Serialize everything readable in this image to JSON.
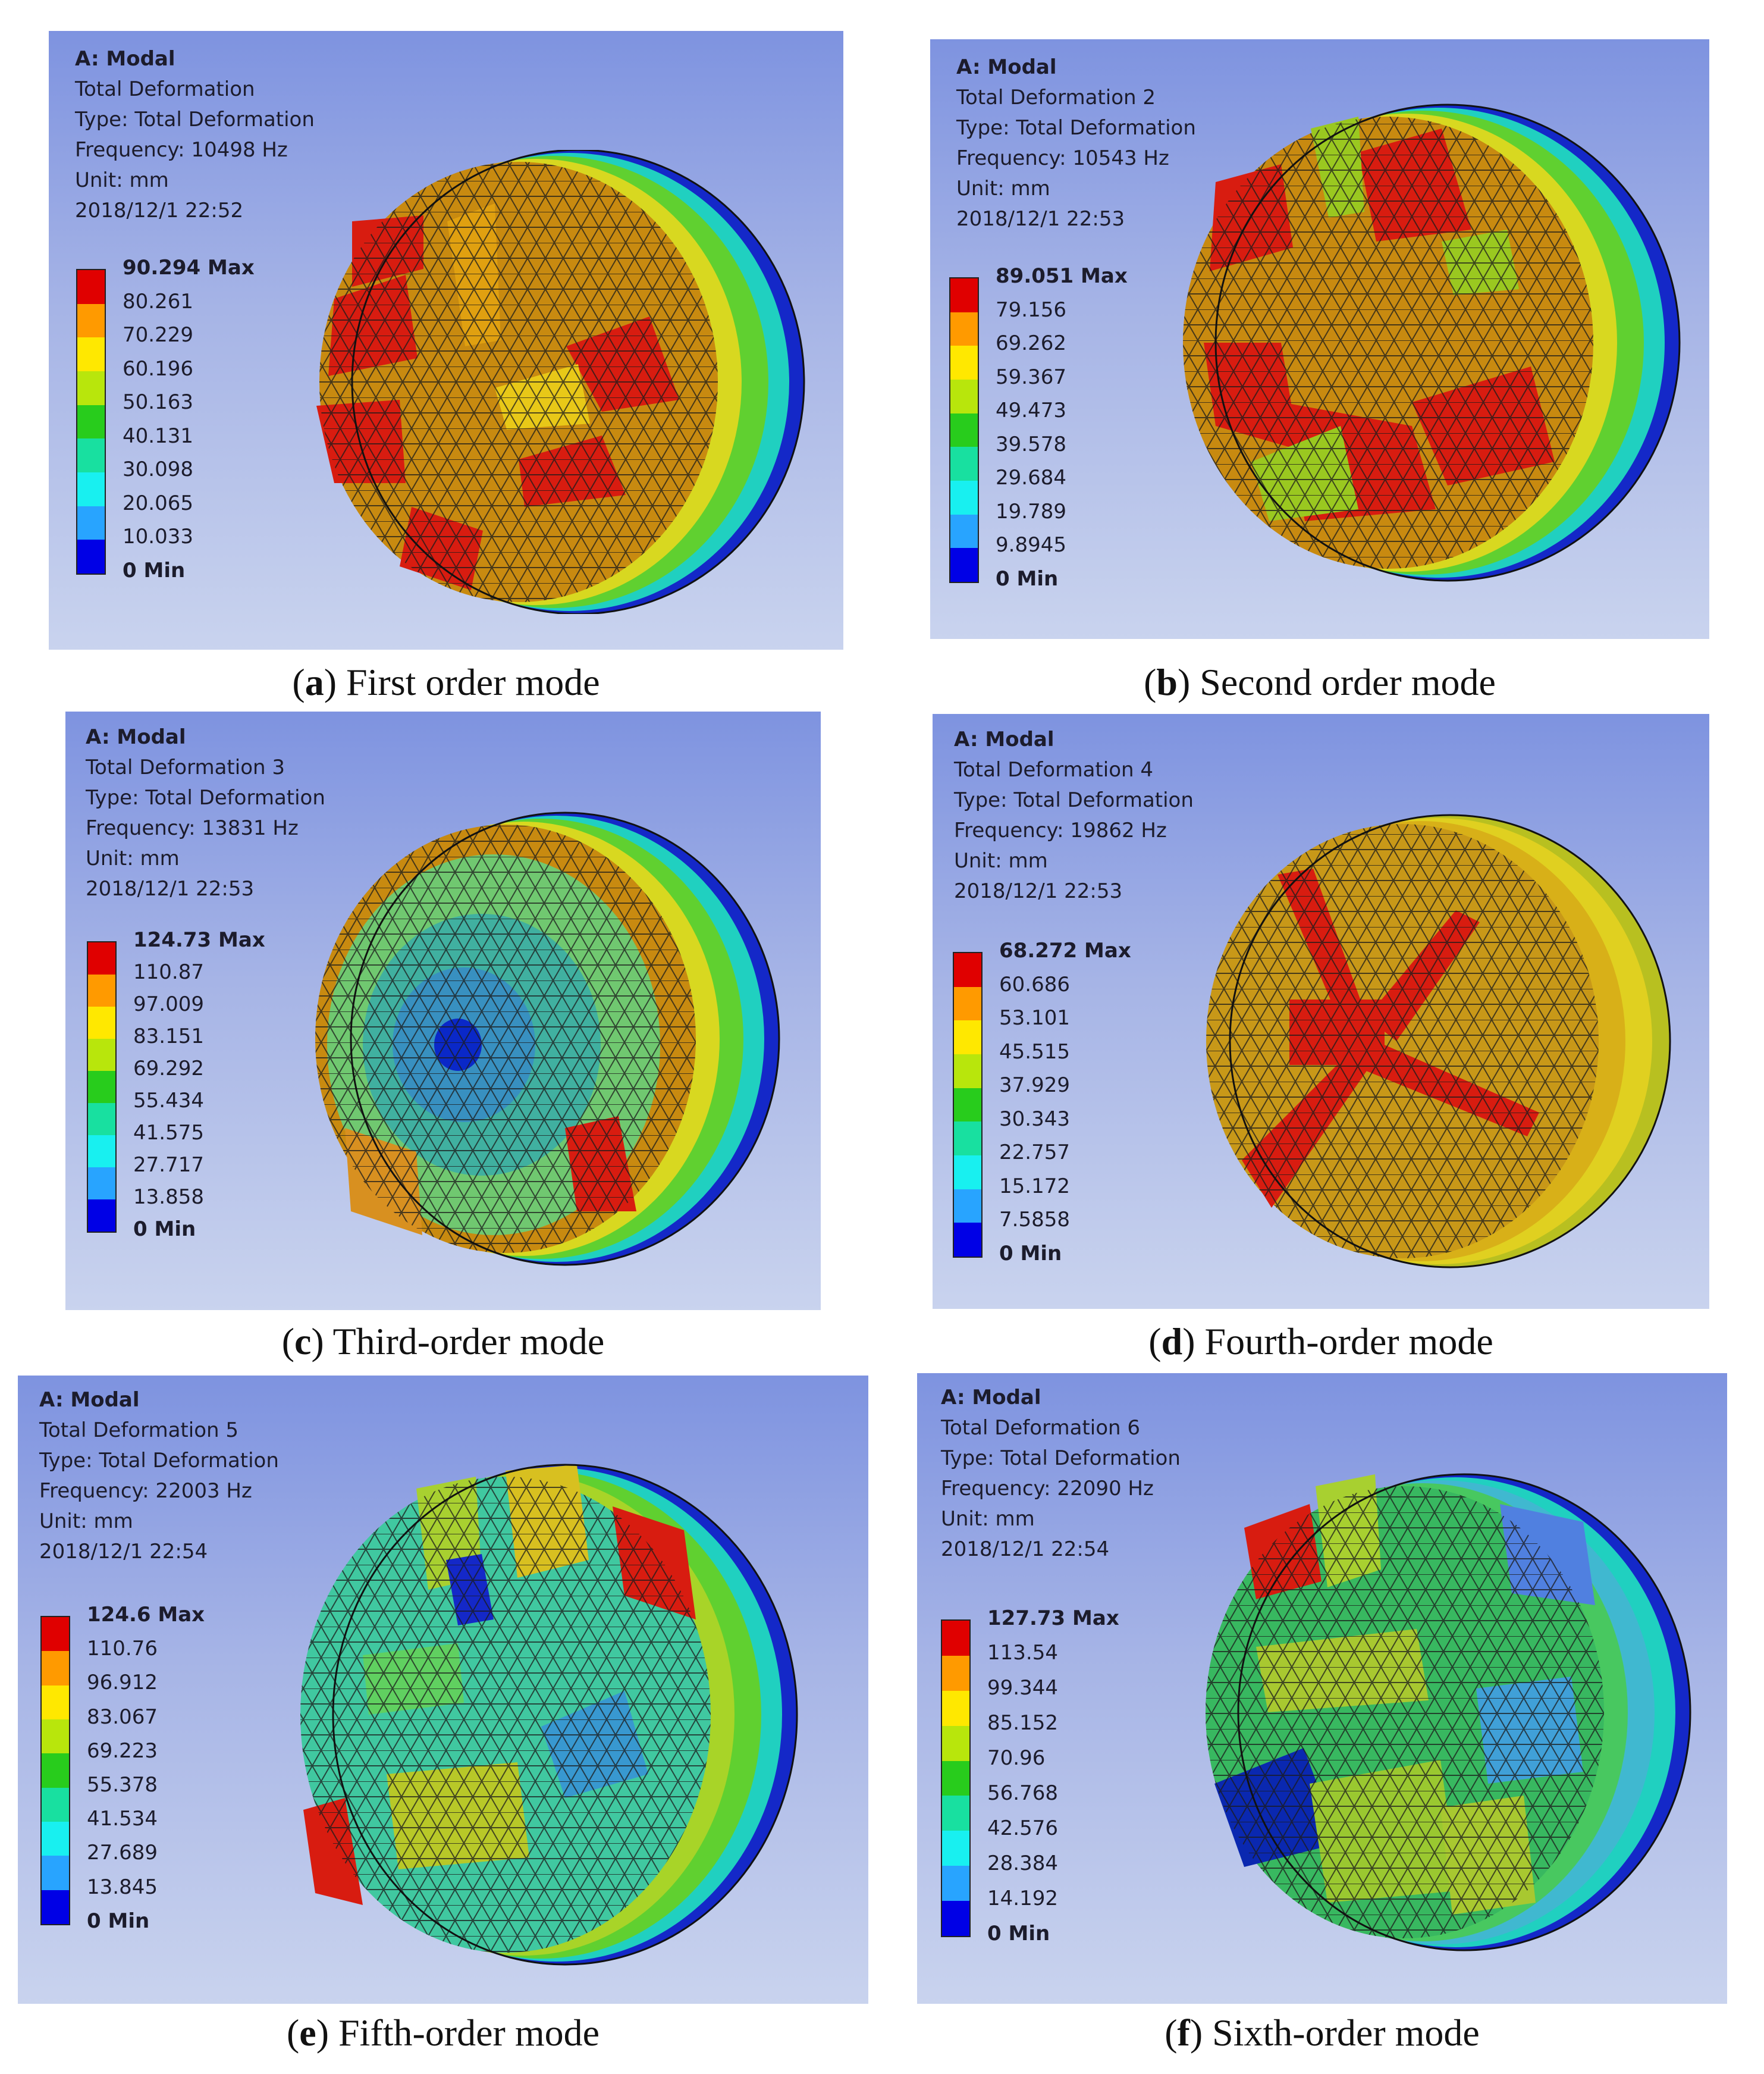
{
  "legend_colors": [
    "#e00000",
    "#ff9a00",
    "#ffe800",
    "#b8e60c",
    "#28cc1c",
    "#18e0a0",
    "#18f0f0",
    "#28a4ff",
    "#0000e6"
  ],
  "panels": [
    {
      "id": "a",
      "info": [
        "A: Modal",
        "Total Deformation",
        "Type: Total Deformation",
        "Frequency: 10498 Hz",
        "Unit: mm",
        "2018/12/1 22:52"
      ],
      "legend": [
        "90.294 Max",
        "80.261",
        "70.229",
        "60.196",
        "50.163",
        "40.131",
        "30.098",
        "20.065",
        "10.033",
        "0 Min"
      ],
      "caption_letter": "a",
      "caption_text": " First order mode"
    },
    {
      "id": "b",
      "info": [
        "A: Modal",
        "Total Deformation 2",
        "Type: Total Deformation",
        "Frequency: 10543 Hz",
        "Unit: mm",
        "2018/12/1 22:53"
      ],
      "legend": [
        "89.051 Max",
        "79.156",
        "69.262",
        "59.367",
        "49.473",
        "39.578",
        "29.684",
        "19.789",
        "9.8945",
        "0 Min"
      ],
      "caption_letter": "b",
      "caption_text": " Second order mode"
    },
    {
      "id": "c",
      "info": [
        "A: Modal",
        "Total Deformation 3",
        "Type: Total Deformation",
        "Frequency: 13831 Hz",
        "Unit: mm",
        "2018/12/1 22:53"
      ],
      "legend": [
        "124.73 Max",
        "110.87",
        "97.009",
        "83.151",
        "69.292",
        "55.434",
        "41.575",
        "27.717",
        "13.858",
        "0 Min"
      ],
      "caption_letter": "c",
      "caption_text": " Third-order mode"
    },
    {
      "id": "d",
      "info": [
        "A: Modal",
        "Total Deformation 4",
        "Type: Total Deformation",
        "Frequency: 19862 Hz",
        "Unit: mm",
        "2018/12/1 22:53"
      ],
      "legend": [
        "68.272 Max",
        "60.686",
        "53.101",
        "45.515",
        "37.929",
        "30.343",
        "22.757",
        "15.172",
        "7.5858",
        "0 Min"
      ],
      "caption_letter": "d",
      "caption_text": " Fourth-order mode"
    },
    {
      "id": "e",
      "info": [
        "A: Modal",
        "Total Deformation 5",
        "Type: Total Deformation",
        "Frequency: 22003 Hz",
        "Unit: mm",
        "2018/12/1 22:54"
      ],
      "legend": [
        "124.6 Max",
        "110.76",
        "96.912",
        "83.067",
        "69.223",
        "55.378",
        "41.534",
        "27.689",
        "13.845",
        "0 Min"
      ],
      "caption_letter": "e",
      "caption_text": " Fifth-order mode"
    },
    {
      "id": "f",
      "info": [
        "A: Modal",
        "Total Deformation 6",
        "Type: Total Deformation",
        "Frequency: 22090 Hz",
        "Unit: mm",
        "2018/12/1 22:54"
      ],
      "legend": [
        "127.73 Max",
        "113.54",
        "99.344",
        "85.152",
        "70.96",
        "56.768",
        "42.576",
        "28.384",
        "14.192",
        "0 Min"
      ],
      "caption_letter": "f",
      "caption_text": " Sixth-order mode"
    }
  ]
}
